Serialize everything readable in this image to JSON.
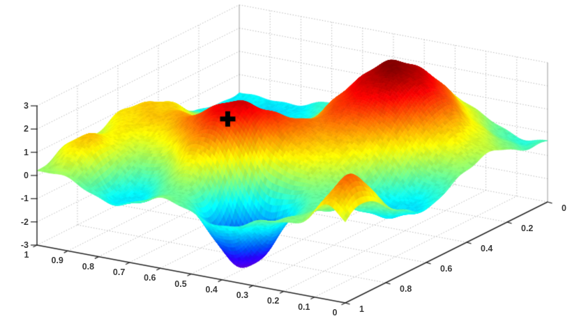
{
  "figure": {
    "background": "#ffffff",
    "description": "3D surface plot with jet colormap, dotted grid walls and a black plus marker on a peak"
  },
  "chart_data": {
    "type": "surface",
    "title": "",
    "colormap": "jet",
    "grid_style": "dotted",
    "grid_color": "#a9a9a9",
    "axis_color": "#222222",
    "label_color": "#3b3b3b",
    "view": {
      "azimuth": -37.5,
      "elevation": 30
    },
    "x_axis": {
      "min": 0,
      "max": 1,
      "tick_values": [
        1,
        0.9,
        0.8,
        0.7,
        0.6,
        0.5,
        0.4,
        0.3,
        0.2,
        0.1,
        0
      ],
      "tick_labels": [
        "1",
        "0.9",
        "0.8",
        "0.7",
        "0.6",
        "0.5",
        "0.4",
        "0.3",
        "0.2",
        "0.1",
        "0"
      ]
    },
    "y_axis": {
      "min": 0,
      "max": 1,
      "tick_values": [
        1,
        0.8,
        0.6,
        0.4,
        0.2,
        0
      ],
      "tick_labels": [
        "1",
        "0.8",
        "0.6",
        "0.4",
        "0.2",
        "0"
      ]
    },
    "z_axis": {
      "min": -3,
      "max": 3,
      "tick_values": [
        3,
        2,
        1,
        0,
        -1,
        -2,
        -3
      ],
      "tick_labels": [
        "3",
        "2",
        "1",
        "0",
        "-1",
        "-2",
        "-3"
      ]
    },
    "color_axis": [
      -3.3,
      3.4
    ],
    "marker": {
      "symbol": "+",
      "color": "#000000",
      "x": 0.565,
      "y": 0.72,
      "z": 2.3
    },
    "surface_peaks": [
      {
        "x": 0.56,
        "y": 0.72,
        "amp": 3.3,
        "sx": 0.13,
        "sy": 0.16
      },
      {
        "x": 0.3,
        "y": 0.26,
        "amp": 3.6,
        "sx": 0.16,
        "sy": 0.2
      },
      {
        "x": 0.43,
        "y": 0.85,
        "amp": -4.3,
        "sx": 0.09,
        "sy": 0.09
      },
      {
        "x": 0.74,
        "y": 0.87,
        "amp": -1.8,
        "sx": 0.13,
        "sy": 0.11
      },
      {
        "x": 0.91,
        "y": 0.87,
        "amp": 1.8,
        "sx": 0.07,
        "sy": 0.085
      },
      {
        "x": 0.055,
        "y": 0.9,
        "amp": 2.0,
        "sx": 0.045,
        "sy": 0.09
      },
      {
        "x": 0.1,
        "y": 0.58,
        "amp": -1.5,
        "sx": 0.09,
        "sy": 0.13
      },
      {
        "x": 0.15,
        "y": 0.06,
        "amp": -1.3,
        "sx": 0.14,
        "sy": 0.14
      },
      {
        "x": 0.6,
        "y": 0.44,
        "amp": -1.0,
        "sx": 0.11,
        "sy": 0.13
      },
      {
        "x": 0.95,
        "y": 0.52,
        "amp": 1.1,
        "sx": 0.09,
        "sy": 0.16
      },
      {
        "x": 0.88,
        "y": 0.12,
        "amp": -1.1,
        "sx": 0.18,
        "sy": 0.18
      },
      {
        "x": 0.78,
        "y": 0.62,
        "amp": 0.9,
        "sx": 0.1,
        "sy": 0.12
      }
    ],
    "ripple": {
      "amp_coarse": 0.07,
      "amp_fine": 0.04
    }
  }
}
